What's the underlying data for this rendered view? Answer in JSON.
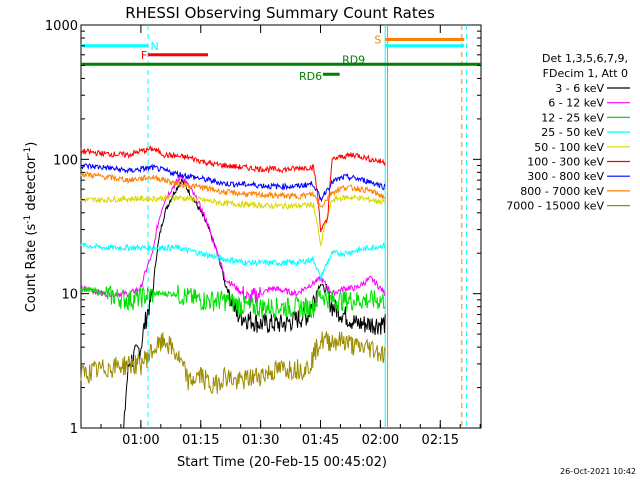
{
  "chart_data": {
    "type": "line",
    "title": "RHESSI Observing Summary Count Rates",
    "xlabel": "Start Time (20-Feb-15 00:45:02)",
    "ylabel_main": "Count Rate (s",
    "ylabel_sup1": "-1",
    "ylabel_mid": " detector",
    "ylabel_sup2": "-1",
    "ylabel_end": ")",
    "ylim": [
      1,
      1000
    ],
    "yscale": "log",
    "xlim": [
      0.75,
      2.42
    ],
    "x_ticks": [
      {
        "t": 1.0,
        "label": "01:00"
      },
      {
        "t": 1.25,
        "label": "01:15"
      },
      {
        "t": 1.5,
        "label": "01:30"
      },
      {
        "t": 1.75,
        "label": "01:45"
      },
      {
        "t": 2.0,
        "label": "02:00"
      },
      {
        "t": 2.25,
        "label": "02:15"
      }
    ],
    "y_ticks": [
      {
        "v": 1,
        "label": "1"
      },
      {
        "v": 10,
        "label": "10"
      },
      {
        "v": 100,
        "label": "100"
      },
      {
        "v": 1000,
        "label": "1000"
      }
    ],
    "legend_header": [
      "Det 1,3,5,6,7,9,",
      "FDecim 1, Att 0"
    ],
    "series": [
      {
        "name": "3 - 6 keV",
        "color": "#000000",
        "values": [
          [
            0.75,
            0
          ],
          [
            0.92,
            0
          ],
          [
            0.95,
            3
          ],
          [
            1.0,
            4
          ],
          [
            1.05,
            10
          ],
          [
            1.1,
            40
          ],
          [
            1.17,
            70
          ],
          [
            1.22,
            50
          ],
          [
            1.3,
            25
          ],
          [
            1.35,
            12
          ],
          [
            1.4,
            7
          ],
          [
            1.5,
            6
          ],
          [
            1.6,
            6
          ],
          [
            1.7,
            7
          ],
          [
            1.75,
            12
          ],
          [
            1.8,
            8
          ],
          [
            1.85,
            7
          ],
          [
            1.9,
            6
          ],
          [
            1.96,
            6
          ],
          [
            2.02,
            6
          ]
        ]
      },
      {
        "name": "6 - 12 keV",
        "color": "#ff00ff",
        "values": [
          [
            0.75,
            11
          ],
          [
            0.85,
            10
          ],
          [
            0.95,
            10
          ],
          [
            1.0,
            11
          ],
          [
            1.05,
            20
          ],
          [
            1.1,
            50
          ],
          [
            1.17,
            75
          ],
          [
            1.22,
            55
          ],
          [
            1.3,
            25
          ],
          [
            1.35,
            13
          ],
          [
            1.45,
            9
          ],
          [
            1.55,
            11
          ],
          [
            1.65,
            10
          ],
          [
            1.72,
            12
          ],
          [
            1.75,
            13
          ],
          [
            1.8,
            10
          ],
          [
            1.85,
            11
          ],
          [
            1.9,
            11
          ],
          [
            1.96,
            13
          ],
          [
            2.02,
            10
          ]
        ]
      },
      {
        "name": "12 - 25 keV",
        "color": "#00e000",
        "values": [
          [
            0.75,
            11
          ],
          [
            0.85,
            10
          ],
          [
            0.95,
            9
          ],
          [
            1.05,
            10
          ],
          [
            1.15,
            10
          ],
          [
            1.25,
            9
          ],
          [
            1.35,
            9
          ],
          [
            1.45,
            8
          ],
          [
            1.55,
            8
          ],
          [
            1.65,
            8
          ],
          [
            1.72,
            8
          ],
          [
            1.75,
            10
          ],
          [
            1.8,
            9
          ],
          [
            1.85,
            9
          ],
          [
            1.9,
            9
          ],
          [
            1.96,
            9
          ],
          [
            2.02,
            9
          ]
        ]
      },
      {
        "name": "25 - 50 keV",
        "color": "#00ffff",
        "values": [
          [
            0.75,
            23
          ],
          [
            0.85,
            22
          ],
          [
            0.95,
            22
          ],
          [
            1.05,
            22
          ],
          [
            1.15,
            22
          ],
          [
            1.25,
            20
          ],
          [
            1.35,
            18
          ],
          [
            1.45,
            17
          ],
          [
            1.55,
            17
          ],
          [
            1.65,
            17
          ],
          [
            1.72,
            18
          ],
          [
            1.75,
            13
          ],
          [
            1.8,
            20
          ],
          [
            1.85,
            20
          ],
          [
            1.9,
            21
          ],
          [
            1.96,
            22
          ],
          [
            2.02,
            23
          ]
        ]
      },
      {
        "name": "50 - 100 keV",
        "color": "#d8d800",
        "values": [
          [
            0.75,
            50
          ],
          [
            0.85,
            50
          ],
          [
            0.95,
            51
          ],
          [
            1.05,
            51
          ],
          [
            1.15,
            52
          ],
          [
            1.25,
            50
          ],
          [
            1.35,
            47
          ],
          [
            1.45,
            46
          ],
          [
            1.55,
            45
          ],
          [
            1.65,
            45
          ],
          [
            1.72,
            46
          ],
          [
            1.75,
            22
          ],
          [
            1.8,
            50
          ],
          [
            1.85,
            52
          ],
          [
            1.9,
            52
          ],
          [
            1.96,
            50
          ],
          [
            2.02,
            48
          ]
        ]
      },
      {
        "name": "100 - 300 keV",
        "color": "#ff0000",
        "values": [
          [
            0.75,
            115
          ],
          [
            0.85,
            110
          ],
          [
            0.95,
            108
          ],
          [
            1.0,
            115
          ],
          [
            1.05,
            120
          ],
          [
            1.1,
            108
          ],
          [
            1.2,
            103
          ],
          [
            1.3,
            92
          ],
          [
            1.4,
            88
          ],
          [
            1.5,
            85
          ],
          [
            1.6,
            84
          ],
          [
            1.72,
            88
          ],
          [
            1.75,
            30
          ],
          [
            1.78,
            35
          ],
          [
            1.8,
            100
          ],
          [
            1.85,
            106
          ],
          [
            1.9,
            108
          ],
          [
            1.96,
            100
          ],
          [
            2.02,
            95
          ]
        ]
      },
      {
        "name": "300 - 800 keV",
        "color": "#0000ff",
        "values": [
          [
            0.75,
            90
          ],
          [
            0.85,
            87
          ],
          [
            0.95,
            82
          ],
          [
            1.05,
            87
          ],
          [
            1.15,
            78
          ],
          [
            1.25,
            72
          ],
          [
            1.35,
            66
          ],
          [
            1.45,
            65
          ],
          [
            1.55,
            63
          ],
          [
            1.65,
            63
          ],
          [
            1.72,
            66
          ],
          [
            1.75,
            50
          ],
          [
            1.8,
            68
          ],
          [
            1.85,
            74
          ],
          [
            1.9,
            72
          ],
          [
            1.96,
            68
          ],
          [
            2.02,
            62
          ]
        ]
      },
      {
        "name": "800 - 7000 keV",
        "color": "#ff8000",
        "values": [
          [
            0.75,
            78
          ],
          [
            0.85,
            74
          ],
          [
            0.95,
            70
          ],
          [
            1.05,
            74
          ],
          [
            1.15,
            66
          ],
          [
            1.25,
            62
          ],
          [
            1.35,
            57
          ],
          [
            1.45,
            55
          ],
          [
            1.55,
            54
          ],
          [
            1.65,
            53
          ],
          [
            1.72,
            55
          ],
          [
            1.75,
            44
          ],
          [
            1.8,
            57
          ],
          [
            1.85,
            62
          ],
          [
            1.9,
            61
          ],
          [
            1.96,
            58
          ],
          [
            2.02,
            52
          ]
        ]
      },
      {
        "name": "7000 - 15000 keV",
        "color": "#9c8c00",
        "values": [
          [
            0.75,
            2.5
          ],
          [
            0.85,
            2.8
          ],
          [
            0.95,
            3.0
          ],
          [
            1.0,
            3.0
          ],
          [
            1.05,
            3.8
          ],
          [
            1.1,
            4.5
          ],
          [
            1.15,
            3.5
          ],
          [
            1.2,
            2.2
          ],
          [
            1.25,
            2.5
          ],
          [
            1.3,
            2.0
          ],
          [
            1.35,
            2.5
          ],
          [
            1.4,
            2.2
          ],
          [
            1.5,
            2.5
          ],
          [
            1.6,
            2.8
          ],
          [
            1.7,
            2.8
          ],
          [
            1.75,
            4.5
          ],
          [
            1.8,
            4.5
          ],
          [
            1.85,
            4.5
          ],
          [
            1.9,
            4.0
          ],
          [
            1.96,
            4.0
          ],
          [
            2.02,
            3.5
          ]
        ]
      }
    ],
    "state_bars": [
      {
        "label": "N",
        "color": "#00ffff",
        "segments": [
          [
            0.75,
            1.03
          ],
          [
            2.02,
            2.35
          ]
        ],
        "value": 700
      },
      {
        "label": "S",
        "color": "#ff8000",
        "segments": [
          [
            2.02,
            2.35
          ]
        ],
        "value": 780
      },
      {
        "label": "F",
        "color": "#ff0000",
        "segments": [
          [
            1.03,
            1.28
          ]
        ],
        "value": 600
      },
      {
        "label": "",
        "color": "#008000",
        "segments": [
          [
            0.75,
            2.42
          ]
        ],
        "value": 510
      },
      {
        "label": "RD6",
        "color": "#008000",
        "segments": [
          [
            1.76,
            1.83
          ]
        ],
        "value": 430
      },
      {
        "label": "RD9",
        "color": "#008000",
        "segments": [],
        "value": 510
      }
    ],
    "vertical_lines": [
      {
        "t": 1.03,
        "color": "#00ffff",
        "style": "dashed"
      },
      {
        "t": 2.02,
        "color": "#00ffff",
        "style": "solid"
      },
      {
        "t": 2.03,
        "color": "#ff8000",
        "style": "solid"
      },
      {
        "t": 2.34,
        "color": "#ff8000",
        "style": "dashed"
      },
      {
        "t": 2.36,
        "color": "#00ffff",
        "style": "dashed"
      }
    ],
    "grid": false,
    "legend_placement": "right"
  },
  "timestamp": "26-Oct-2021 10:42"
}
